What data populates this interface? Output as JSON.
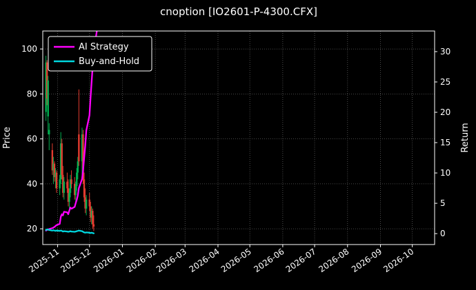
{
  "title": "cnoption [IO2601-P-4300.CFX]",
  "colors": {
    "background": "#000000",
    "text": "#ffffff",
    "frame": "#ffffff",
    "grid": "#606060",
    "ai_strategy": "#ff00ff",
    "buy_and_hold": "#00d8e0",
    "candle_up": "#00b050",
    "candle_down": "#e33b2f"
  },
  "legend": {
    "items": [
      {
        "label": "AI Strategy",
        "color_key": "ai_strategy"
      },
      {
        "label": "Buy-and-Hold",
        "color_key": "buy_and_hold"
      }
    ]
  },
  "chart_data": {
    "type": "candlestick+line",
    "title": "cnoption [IO2601-P-4300.CFX]",
    "ylabel_left": "Price",
    "ylabel_right": "Return",
    "grid": "dotted",
    "legend_position": "upper-left",
    "x_ticks": [
      "2025-11",
      "2025-12",
      "2026-01",
      "2026-02",
      "2026-03",
      "2026-04",
      "2026-05",
      "2026-06",
      "2026-07",
      "2026-08",
      "2026-09",
      "2026-10"
    ],
    "price_ticks": [
      20,
      40,
      60,
      80,
      100
    ],
    "return_ticks": [
      0,
      5,
      10,
      15,
      20,
      25,
      30
    ],
    "xlim_dates": [
      "2025-10-18",
      "2026-10-22"
    ],
    "ylim_price": [
      13,
      108
    ],
    "ylim_return": [
      -1.8,
      33.4
    ],
    "candles": [
      {
        "d": "2025-10-21",
        "o": 72,
        "h": 97,
        "l": 68,
        "c": 94
      },
      {
        "d": "2025-10-22",
        "o": 94,
        "h": 95,
        "l": 75,
        "c": 78
      },
      {
        "d": "2025-10-23",
        "o": 70,
        "h": 88,
        "l": 62,
        "c": 86
      },
      {
        "d": "2025-10-24",
        "o": 62,
        "h": 67,
        "l": 55,
        "c": 64
      },
      {
        "d": "2025-10-27",
        "o": 55,
        "h": 58,
        "l": 44,
        "c": 46
      },
      {
        "d": "2025-10-28",
        "o": 46,
        "h": 52,
        "l": 40,
        "c": 49
      },
      {
        "d": "2025-10-29",
        "o": 49,
        "h": 50,
        "l": 41,
        "c": 43
      },
      {
        "d": "2025-10-30",
        "o": 43,
        "h": 47,
        "l": 38,
        "c": 45
      },
      {
        "d": "2025-10-31",
        "o": 45,
        "h": 46,
        "l": 36,
        "c": 38
      },
      {
        "d": "2025-11-03",
        "o": 38,
        "h": 44,
        "l": 35,
        "c": 42
      },
      {
        "d": "2025-11-04",
        "o": 42,
        "h": 63,
        "l": 40,
        "c": 58
      },
      {
        "d": "2025-11-05",
        "o": 58,
        "h": 60,
        "l": 42,
        "c": 44
      },
      {
        "d": "2025-11-06",
        "o": 44,
        "h": 48,
        "l": 34,
        "c": 36
      },
      {
        "d": "2025-11-07",
        "o": 36,
        "h": 43,
        "l": 33,
        "c": 41
      },
      {
        "d": "2025-11-10",
        "o": 41,
        "h": 45,
        "l": 36,
        "c": 38
      },
      {
        "d": "2025-11-11",
        "o": 38,
        "h": 42,
        "l": 30,
        "c": 32
      },
      {
        "d": "2025-11-12",
        "o": 32,
        "h": 38,
        "l": 29,
        "c": 36
      },
      {
        "d": "2025-11-13",
        "o": 36,
        "h": 44,
        "l": 34,
        "c": 42
      },
      {
        "d": "2025-11-14",
        "o": 42,
        "h": 46,
        "l": 38,
        "c": 40
      },
      {
        "d": "2025-11-17",
        "o": 40,
        "h": 43,
        "l": 33,
        "c": 35
      },
      {
        "d": "2025-11-18",
        "o": 35,
        "h": 41,
        "l": 32,
        "c": 39
      },
      {
        "d": "2025-11-19",
        "o": 39,
        "h": 47,
        "l": 37,
        "c": 45
      },
      {
        "d": "2025-11-20",
        "o": 45,
        "h": 52,
        "l": 42,
        "c": 50
      },
      {
        "d": "2025-11-21",
        "o": 62,
        "h": 82,
        "l": 48,
        "c": 50
      },
      {
        "d": "2025-11-24",
        "o": 50,
        "h": 65,
        "l": 44,
        "c": 62
      },
      {
        "d": "2025-11-25",
        "o": 62,
        "h": 64,
        "l": 40,
        "c": 42
      },
      {
        "d": "2025-11-26",
        "o": 42,
        "h": 45,
        "l": 32,
        "c": 34
      },
      {
        "d": "2025-11-27",
        "o": 34,
        "h": 38,
        "l": 27,
        "c": 29
      },
      {
        "d": "2025-11-28",
        "o": 29,
        "h": 35,
        "l": 26,
        "c": 33
      },
      {
        "d": "2025-12-01",
        "o": 33,
        "h": 36,
        "l": 28,
        "c": 30
      },
      {
        "d": "2025-12-02",
        "o": 30,
        "h": 32,
        "l": 23,
        "c": 25
      },
      {
        "d": "2025-12-03",
        "o": 25,
        "h": 30,
        "l": 22,
        "c": 28
      },
      {
        "d": "2025-12-04",
        "o": 28,
        "h": 29,
        "l": 20,
        "c": 22
      },
      {
        "d": "2025-12-05",
        "o": 22,
        "h": 26,
        "l": 19,
        "c": 21
      }
    ],
    "series": [
      {
        "name": "AI Strategy",
        "axis": "return",
        "color_key": "ai_strategy",
        "points": [
          [
            "2025-10-21",
            0.5
          ],
          [
            "2025-10-23",
            0.7
          ],
          [
            "2025-10-27",
            0.9
          ],
          [
            "2025-10-29",
            1.1
          ],
          [
            "2025-10-31",
            1.4
          ],
          [
            "2025-11-03",
            1.6
          ],
          [
            "2025-11-04",
            2.8
          ],
          [
            "2025-11-05",
            3.2
          ],
          [
            "2025-11-06",
            3.0
          ],
          [
            "2025-11-07",
            3.6
          ],
          [
            "2025-11-10",
            3.5
          ],
          [
            "2025-11-11",
            3.2
          ],
          [
            "2025-11-12",
            3.8
          ],
          [
            "2025-11-13",
            4.3
          ],
          [
            "2025-11-14",
            4.1
          ],
          [
            "2025-11-17",
            4.4
          ],
          [
            "2025-11-18",
            5.0
          ],
          [
            "2025-11-19",
            5.6
          ],
          [
            "2025-11-20",
            6.3
          ],
          [
            "2025-11-21",
            7.5
          ],
          [
            "2025-11-24",
            9.0
          ],
          [
            "2025-11-25",
            10.5
          ],
          [
            "2025-11-26",
            12.5
          ],
          [
            "2025-11-27",
            14.5
          ],
          [
            "2025-11-28",
            17.0
          ],
          [
            "2025-12-01",
            19.5
          ],
          [
            "2025-12-02",
            22.5
          ],
          [
            "2025-12-03",
            25.0
          ],
          [
            "2025-12-04",
            27.5
          ],
          [
            "2025-12-05",
            30.0
          ],
          [
            "2025-12-08",
            33.5
          ]
        ]
      },
      {
        "name": "Buy-and-Hold",
        "axis": "return",
        "color_key": "buy_and_hold",
        "points": [
          [
            "2025-10-21",
            0.6
          ],
          [
            "2025-10-22",
            0.7
          ],
          [
            "2025-10-23",
            0.65
          ],
          [
            "2025-10-24",
            0.6
          ],
          [
            "2025-10-27",
            0.5
          ],
          [
            "2025-10-28",
            0.55
          ],
          [
            "2025-10-29",
            0.5
          ],
          [
            "2025-10-30",
            0.45
          ],
          [
            "2025-10-31",
            0.5
          ],
          [
            "2025-11-03",
            0.45
          ],
          [
            "2025-11-04",
            0.5
          ],
          [
            "2025-11-05",
            0.45
          ],
          [
            "2025-11-06",
            0.35
          ],
          [
            "2025-11-07",
            0.4
          ],
          [
            "2025-11-10",
            0.35
          ],
          [
            "2025-11-11",
            0.3
          ],
          [
            "2025-11-12",
            0.35
          ],
          [
            "2025-11-13",
            0.4
          ],
          [
            "2025-11-14",
            0.35
          ],
          [
            "2025-11-17",
            0.3
          ],
          [
            "2025-11-18",
            0.35
          ],
          [
            "2025-11-19",
            0.4
          ],
          [
            "2025-11-20",
            0.45
          ],
          [
            "2025-11-21",
            0.5
          ],
          [
            "2025-11-24",
            0.4
          ],
          [
            "2025-11-25",
            0.3
          ],
          [
            "2025-11-26",
            0.2
          ],
          [
            "2025-11-27",
            0.15
          ],
          [
            "2025-11-28",
            0.2
          ],
          [
            "2025-12-01",
            0.15
          ],
          [
            "2025-12-02",
            0.1
          ],
          [
            "2025-12-03",
            0.15
          ],
          [
            "2025-12-04",
            0.1
          ],
          [
            "2025-12-05",
            0.05
          ]
        ]
      }
    ]
  }
}
